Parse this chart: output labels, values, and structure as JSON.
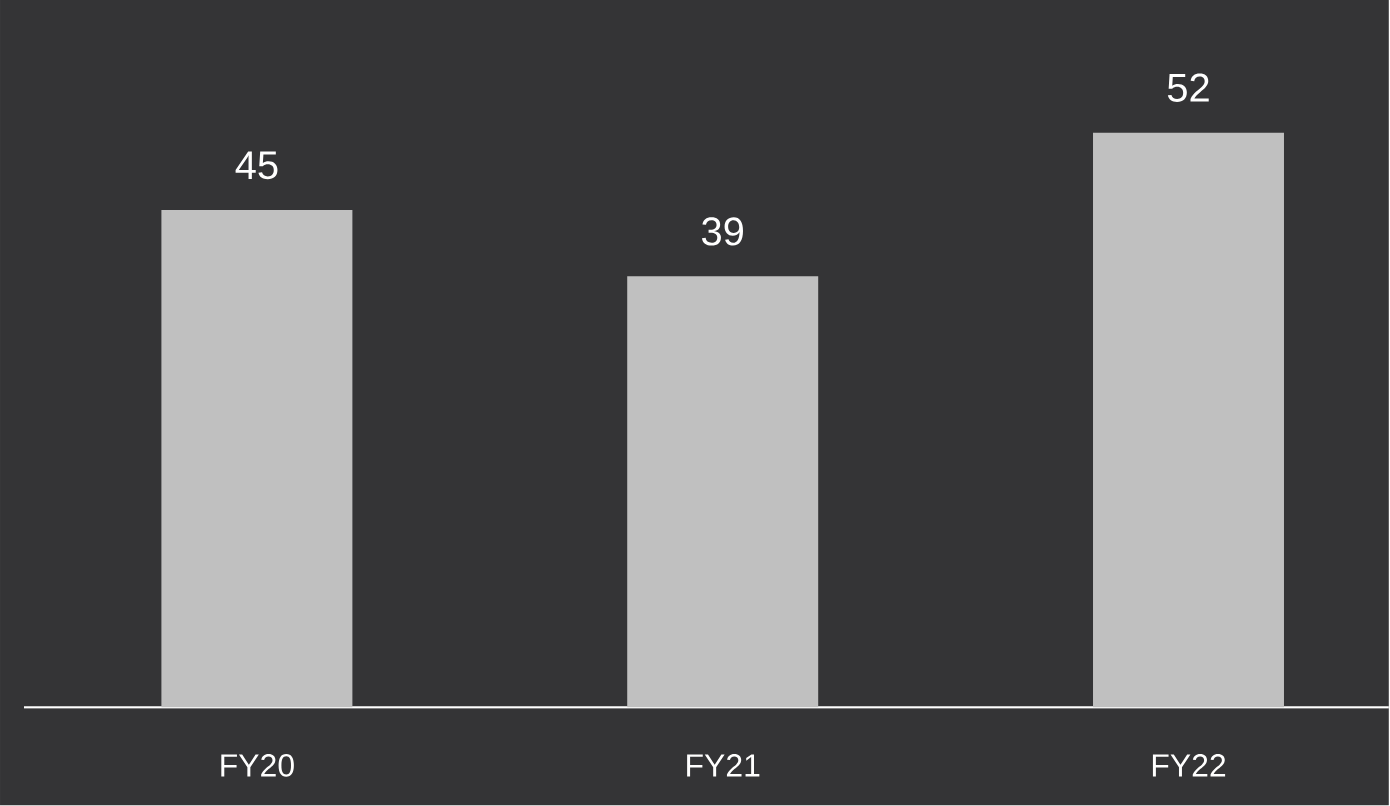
{
  "chart_data": {
    "type": "bar",
    "categories": [
      "FY20",
      "FY21",
      "FY22"
    ],
    "values": [
      45,
      39,
      52
    ],
    "color": "#c0c0c0",
    "ylim": [
      0,
      64
    ],
    "data_labels": true,
    "tick_labels": "x"
  }
}
